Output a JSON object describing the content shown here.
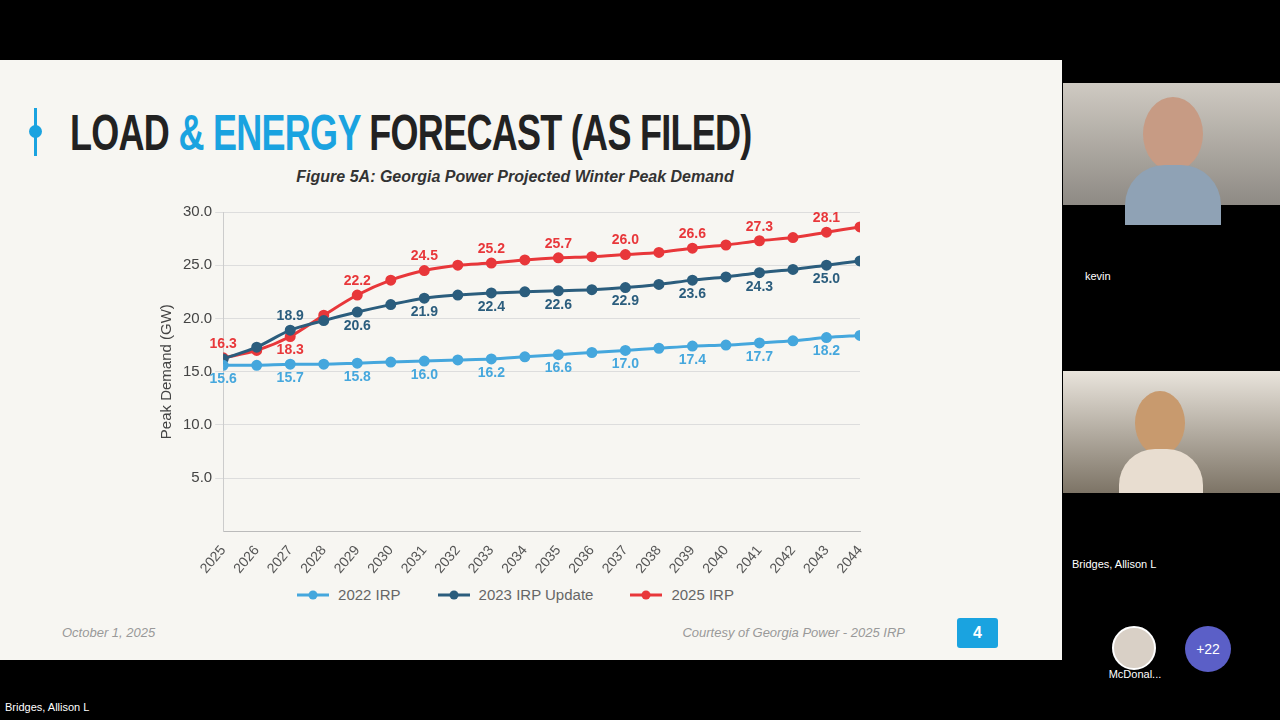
{
  "slide": {
    "title": "LOAD & ENERGY FORECAST (AS FILED)",
    "title_highlight": "& ENERGY",
    "date": "October 1, 2025",
    "credit": "Courtesy of Georgia Power - 2025 IRP",
    "page": 4
  },
  "chart_data": {
    "type": "line",
    "title": "Figure 5A: Georgia Power Projected Winter Peak Demand",
    "y_label": "Peak Demand (GW)",
    "categories": [
      "2025",
      "2026",
      "2027",
      "2028",
      "2029",
      "2030",
      "2031",
      "2032",
      "2033",
      "2034",
      "2035",
      "2036",
      "2037",
      "2038",
      "2039",
      "2040",
      "2041",
      "2042",
      "2043",
      "2044"
    ],
    "series": [
      {
        "name": "2022 IRP",
        "color": "#45a7dd",
        "values": [
          15.6,
          15.6,
          15.7,
          15.7,
          15.8,
          15.9,
          16.0,
          16.1,
          16.2,
          16.4,
          16.6,
          16.8,
          17.0,
          17.2,
          17.4,
          17.5,
          17.7,
          17.9,
          18.2,
          18.4
        ],
        "value_labels": [
          "15.6",
          null,
          "15.7",
          null,
          "15.8",
          null,
          "16.0",
          null,
          "16.2",
          null,
          "16.6",
          null,
          "17.0",
          null,
          "17.4",
          null,
          "17.7",
          null,
          "18.2",
          null
        ]
      },
      {
        "name": "2023 IRP Update",
        "color": "#2b5d7d",
        "values": [
          16.2,
          17.3,
          18.9,
          19.8,
          20.6,
          21.3,
          21.9,
          22.2,
          22.4,
          22.5,
          22.6,
          22.7,
          22.9,
          23.2,
          23.6,
          23.9,
          24.3,
          24.6,
          25.0,
          25.4
        ],
        "value_labels": [
          null,
          null,
          "18.9",
          null,
          "20.6",
          null,
          "21.9",
          null,
          "22.4",
          null,
          "22.6",
          null,
          "22.9",
          null,
          "23.6",
          null,
          "24.3",
          null,
          "25.0",
          null
        ]
      },
      {
        "name": "2025 IRP",
        "color": "#e8373a",
        "values": [
          16.3,
          17.0,
          18.3,
          20.3,
          22.2,
          23.6,
          24.5,
          25.0,
          25.2,
          25.5,
          25.7,
          25.8,
          26.0,
          26.2,
          26.6,
          26.9,
          27.3,
          27.6,
          28.1,
          28.6
        ],
        "value_labels": [
          "16.3",
          null,
          "18.3",
          null,
          "22.2",
          null,
          "24.5",
          null,
          "25.2",
          null,
          "25.7",
          null,
          "26.0",
          null,
          "26.6",
          null,
          "27.3",
          null,
          "28.1",
          null
        ]
      }
    ],
    "ylim": [
      0,
      30
    ],
    "yticks": [
      {
        "value": 5,
        "label": "5.0"
      },
      {
        "value": 10,
        "label": "10.0"
      },
      {
        "value": 15,
        "label": "15.0"
      },
      {
        "value": 20,
        "label": "20.0"
      },
      {
        "value": 25,
        "label": "25.0"
      },
      {
        "value": 30,
        "label": "30.0"
      }
    ],
    "grid": true,
    "legend": "bottom",
    "data_labels": true,
    "marker": "circle",
    "line_style": "solid"
  },
  "meeting": {
    "tiles": [
      "kevin",
      "Bridges, Allison L"
    ],
    "avatar": "McDonal...",
    "more": "+22",
    "presenter": "Bridges, Allison L"
  }
}
